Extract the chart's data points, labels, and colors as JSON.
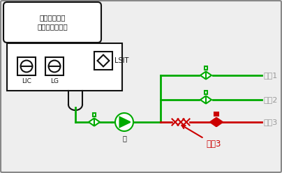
{
  "bg_color": "#eeeeee",
  "border_color": "#888888",
  "green": "#00aa00",
  "red": "#cc0000",
  "dark": "#111111",
  "gray_text": "#999999",
  "label_LIC": "LIC",
  "label_LG": "LG",
  "label_LSIT": "LSIT",
  "label_pump": "泵",
  "label_unit1": "單元1",
  "label_unit2": "單元2",
  "label_unit3_line": "單元3",
  "label_unit3_annot": "單元3",
  "vessel_text": "碳氫化合物回\n收裝置塔冷凝罐",
  "figw": 4.04,
  "figh": 2.48,
  "dpi": 100
}
